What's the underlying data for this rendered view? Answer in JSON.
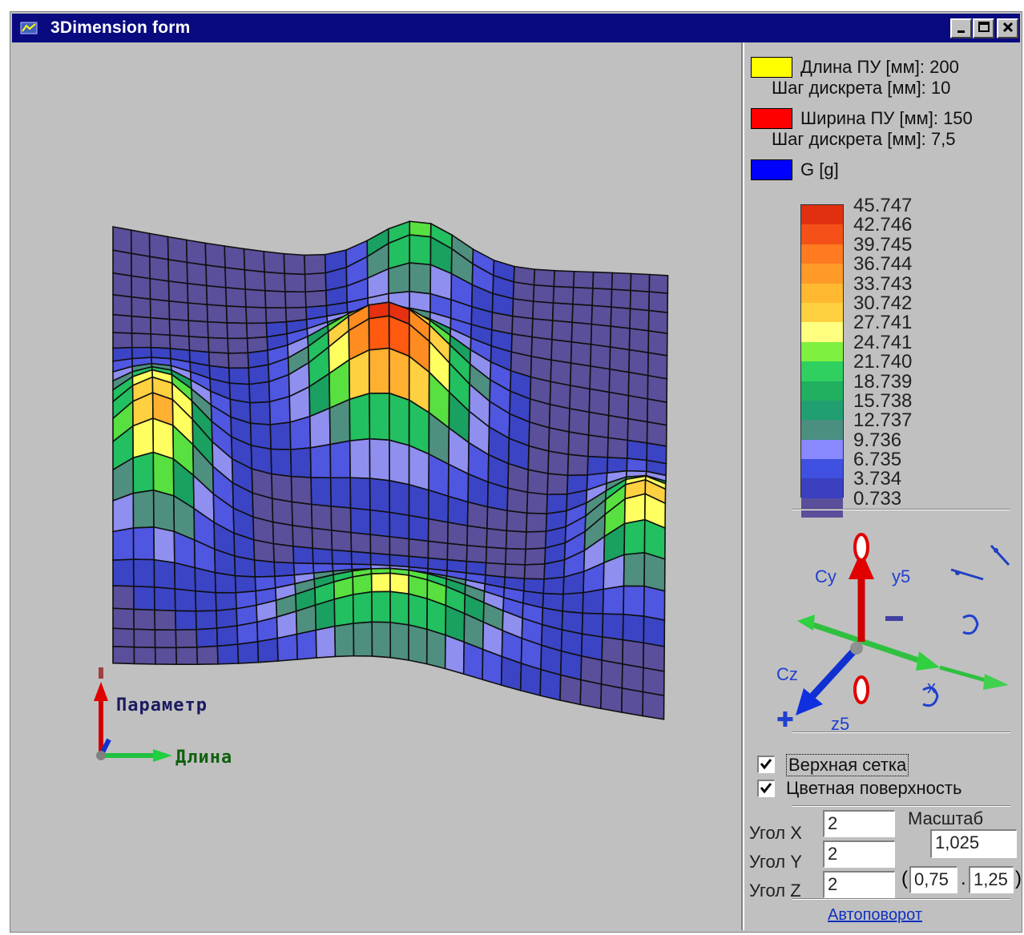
{
  "window": {
    "title": "3Dimension form",
    "minimize_icon": "minimize-icon",
    "maximize_icon": "maximize-icon",
    "close_icon": "close-icon"
  },
  "plot": {
    "axis_param_label": "Параметр",
    "axis_length_label": "Длина",
    "surface_colors": [
      "#5a4f9a",
      "#3a44c4",
      "#4f56e0",
      "#8f8ff0",
      "#4f8f80",
      "#1aa060",
      "#22c060",
      "#58e040",
      "#ffff60",
      "#ffd040",
      "#ffb030",
      "#ff8c20",
      "#ff5a10",
      "#e63010"
    ]
  },
  "legend": {
    "length": {
      "label": "Длина ПУ [мм]: 200",
      "step": "Шаг дискрета [мм]: 10",
      "color": "#ffff00"
    },
    "width": {
      "label": "Ширина ПУ [мм]: 150",
      "step": "Шаг дискрета [мм]: 7,5",
      "color": "#ff0000"
    },
    "g": {
      "label": "G [g]",
      "color": "#0000ff"
    }
  },
  "scale": {
    "values": [
      "45.747",
      "42.746",
      "39.745",
      "36.744",
      "33.743",
      "30.742",
      "27.741",
      "24.741",
      "21.740",
      "18.739",
      "15.738",
      "12.737",
      "9.736",
      "6.735",
      "3.734",
      "0.733"
    ],
    "colors": [
      "#e03010",
      "#f55018",
      "#ff7a20",
      "#ff9a28",
      "#ffb830",
      "#ffd040",
      "#ffff80",
      "#80f040",
      "#30d060",
      "#20b060",
      "#20a070",
      "#4a8f80",
      "#8888ff",
      "#4050e0",
      "#3a40c0",
      "#5a4f9a"
    ]
  },
  "rotation_controls": {
    "rot_y_left": "Cy",
    "rot_y_right": "y5",
    "rot_z_left": "Cz",
    "rot_z_right": "z5",
    "rot_x": "x",
    "minus": "−",
    "plus": "✚"
  },
  "options": {
    "top_grid": {
      "label": "Верхная сетка",
      "checked": true
    },
    "color_surface": {
      "label": "Цветная поверхность",
      "checked": true
    }
  },
  "angles": {
    "x_label": "Угол X",
    "x_value": "2",
    "y_label": "Угол Y",
    "y_value": "2",
    "z_label": "Угол Z",
    "z_value": "2"
  },
  "zoom": {
    "label": "Масштаб",
    "value": "1,025",
    "min": "0,75",
    "max": "1,25",
    "open_paren": "(",
    "dot": ".",
    "close_paren": ")"
  },
  "autorotate_label": "Автоповорот"
}
